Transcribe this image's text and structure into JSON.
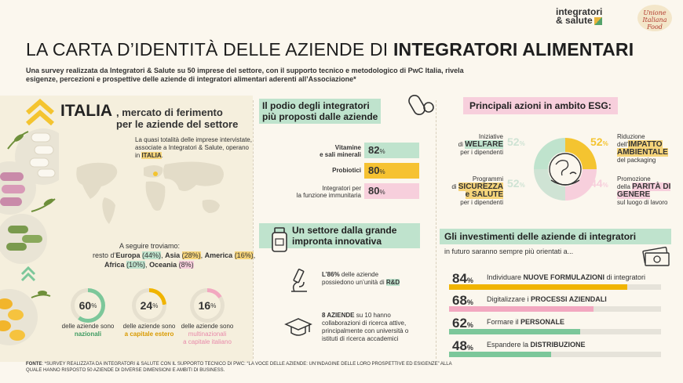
{
  "logos": {
    "integratori_line1": "integratori",
    "integratori_line2": "& salute",
    "unione": "Unione Italiana Food"
  },
  "header": {
    "title_regular": "LA CARTA D’IDENTITÀ DELLE AZIENDE DI ",
    "title_bold": "INTEGRATORI ALIMENTARI",
    "subtitle": "Una survey realizzata da Integratori & Salute su 50 imprese del settore, con il supporto tecnico e metodologico di PwC Italia, rivela esigenze, percezioni e prospettive delle aziende di integratori alimentari aderenti all’Associazione*"
  },
  "italia": {
    "title": "ITALIA",
    "subtitle_line1": ", mercato di ferimento",
    "subtitle_line2": "per le aziende del settore",
    "desc_pre": "La quasi totalità delle imprese intervistate, associate a Integratori & Salute, operano in ",
    "desc_bold": "ITALIA",
    "desc_post": ".",
    "seguire_intro": "A seguire troviamo:",
    "seguire_pre": "resto d’",
    "regions": [
      {
        "name": "Europa",
        "pct": "(44%)"
      },
      {
        "name": "Asia",
        "pct": "(28%)"
      },
      {
        "name": "America",
        "pct": "(16%)"
      },
      {
        "name": "Africa",
        "pct": "(10%)"
      },
      {
        "name": "Oceania",
        "pct": "(8%)"
      }
    ],
    "rings": [
      {
        "value": "60",
        "unit": "%",
        "percent": 60,
        "color": "#7cc79a",
        "lbl1": "delle aziende sono",
        "lbl2": "nazionali",
        "lbl3": ""
      },
      {
        "value": "24",
        "unit": "%",
        "percent": 24,
        "color": "#f0b400",
        "lbl1": "delle aziende sono",
        "lbl2": "a capitale estero",
        "lbl3": ""
      },
      {
        "value": "16",
        "unit": "%",
        "percent": 16,
        "color": "#f2a8c0",
        "lbl1": "delle aziende sono",
        "lbl2": "multinazionali",
        "lbl3": "a capitale italiano"
      }
    ]
  },
  "podio": {
    "title_line1": "Il podio degli integratori",
    "title_line2": "più proposti dalle aziende",
    "rows": [
      {
        "label1": "Vitamine",
        "label2": "e sali minerali",
        "value": "82",
        "unit": "%",
        "color": "#bfe3cd"
      },
      {
        "label1": "Probiotici",
        "label2": "",
        "value": "80",
        "unit": "%",
        "color": "#f6c232"
      },
      {
        "label1": "Integratori per",
        "label2": "la funzione immunitaria",
        "value": "80",
        "unit": "%",
        "color": "#f7cfdc"
      }
    ]
  },
  "innovativa": {
    "title_line1": "Un settore dalla grande",
    "title_line2": "impronta innovativa",
    "fact1_bold": "L’86%",
    "fact1_text": " delle aziende possiedono un’unità di ",
    "fact1_tail": "R&D",
    "fact2_bold": "8 AZIENDE",
    "fact2_text": " su 10 hanno collaborazioni di ricerca attive, principalmente con università o istituti di ricerca accademici"
  },
  "esg": {
    "title": "Principali azioni in ambito ESG:",
    "items": [
      {
        "pct": "52",
        "unit": "%",
        "line1": "Iniziative",
        "line2": "di ",
        "bold": "WELFARE",
        "line3": "per i dipendenti"
      },
      {
        "pct": "52",
        "unit": "%",
        "line1": "Riduzione",
        "line2": "dell’",
        "bold": "IMPATTO AMBIENTALE",
        "line3": "del packaging"
      },
      {
        "pct": "52",
        "unit": "%",
        "line1": "Programmi",
        "line2": "di ",
        "bold": "SICUREZZA",
        "bold2": "e SALUTE",
        "line3": "per i dipendenti"
      },
      {
        "pct": "44",
        "unit": "%",
        "line1": "Promozione",
        "line2": "della ",
        "bold": "PARITÀ DI GENERE",
        "line3": "sul luogo di lavoro"
      }
    ]
  },
  "investimenti": {
    "title": "Gli investimenti delle aziende di integratori",
    "subtitle": "in futuro saranno sempre più orientati a...",
    "rows": [
      {
        "value": "84",
        "unit": "%",
        "percent": 84,
        "pre": "Individuare ",
        "bold": "NUOVE FORMULAZIONI",
        "post": " di integratori",
        "color": "#f0b400"
      },
      {
        "value": "68",
        "unit": "%",
        "percent": 68,
        "pre": "Digitalizzare i ",
        "bold": "PROCESSI AZIENDALI",
        "post": "",
        "color": "#f2a8c0"
      },
      {
        "value": "62",
        "unit": "%",
        "percent": 62,
        "pre": "Formare il ",
        "bold": "PERSONALE",
        "post": "",
        "color": "#7cc79a"
      },
      {
        "value": "48",
        "unit": "%",
        "percent": 48,
        "pre": "Espandere la ",
        "bold": "DISTRIBUZIONE",
        "post": "",
        "color": "#7cc79a"
      }
    ]
  },
  "footer": {
    "label": "FONTE",
    "text": ": *SURVEY REALIZZATA DA INTEGRATORI & SALUTE CON IL SUPPORTO TECNICO DI PWC: “LA VOCE DELLE AZIENDE: UN’INDAGINE DELLE LORO PROSPETTIVE ED ESIGENZE” ALLA QUALE HANNO RISPOSTO 50 AZIENDE DI DIVERSE DIMENSIONI E AMBITI DI BUSINESS."
  }
}
